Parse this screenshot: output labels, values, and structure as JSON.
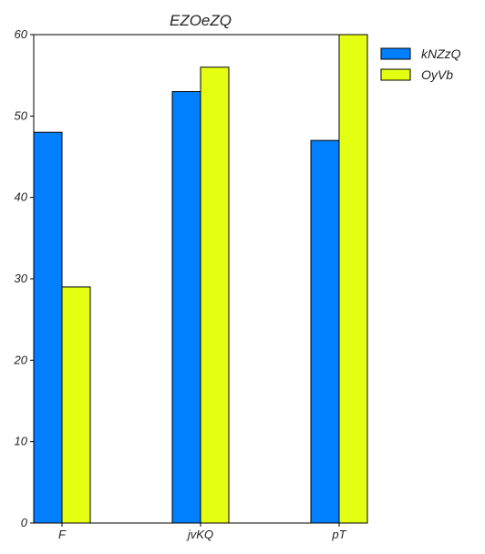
{
  "chart_data": {
    "type": "bar",
    "title": "EZOeZQ",
    "xlabel": "",
    "ylabel": "",
    "categories": [
      "F",
      "jvKQ",
      "pT"
    ],
    "series": [
      {
        "name": "kNZzQ",
        "values": [
          48,
          53,
          47
        ],
        "color": "#0080ff"
      },
      {
        "name": "OyVb",
        "values": [
          29,
          56,
          60
        ],
        "color": "#e5ff12"
      }
    ],
    "ylim": [
      0,
      60
    ],
    "yticks": [
      0,
      10,
      20,
      30,
      40,
      50,
      60
    ],
    "grid": false,
    "legend": "top-right"
  }
}
